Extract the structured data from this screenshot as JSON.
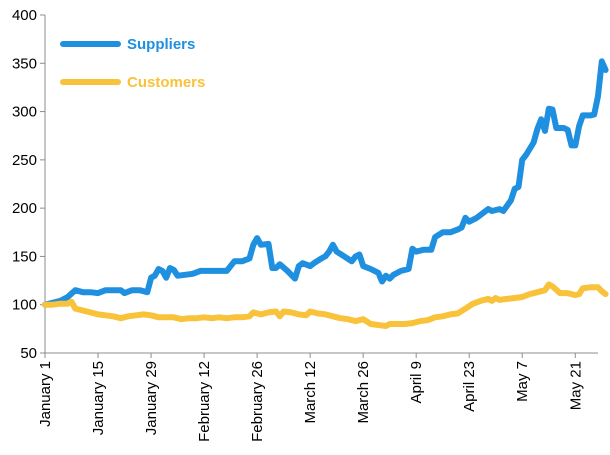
{
  "chart_data": {
    "type": "line",
    "title": "",
    "xlabel": "",
    "ylabel": "",
    "ylim": [
      50,
      400
    ],
    "y_ticks": [
      "50",
      "100",
      "150",
      "200",
      "250",
      "300",
      "350",
      "400"
    ],
    "x_ticks": [
      {
        "label": "January 1",
        "day": 0
      },
      {
        "label": "January 15",
        "day": 14
      },
      {
        "label": "January 29",
        "day": 28
      },
      {
        "label": "February 12",
        "day": 42
      },
      {
        "label": "February 26",
        "day": 56
      },
      {
        "label": "March 12",
        "day": 70
      },
      {
        "label": "March 26",
        "day": 84
      },
      {
        "label": "April 9",
        "day": 98
      },
      {
        "label": "April 23",
        "day": 112
      },
      {
        "label": "May 7",
        "day": 126
      },
      {
        "label": "May 21",
        "day": 140
      }
    ],
    "x_range_days": [
      0,
      146
    ],
    "grid": false,
    "legend_position": "top-left",
    "series": [
      {
        "name": "Suppliers",
        "color": "#1f90e0",
        "points": [
          [
            0,
            100
          ],
          [
            2,
            102
          ],
          [
            4,
            104
          ],
          [
            6,
            108
          ],
          [
            8,
            115
          ],
          [
            10,
            113
          ],
          [
            12,
            113
          ],
          [
            14,
            112
          ],
          [
            16,
            115
          ],
          [
            18,
            115
          ],
          [
            20,
            115
          ],
          [
            21,
            112
          ],
          [
            23,
            115
          ],
          [
            25,
            115
          ],
          [
            27,
            113
          ],
          [
            28,
            128
          ],
          [
            29,
            130
          ],
          [
            30,
            137
          ],
          [
            31,
            135
          ],
          [
            32,
            128
          ],
          [
            33,
            138
          ],
          [
            34,
            136
          ],
          [
            35,
            130
          ],
          [
            37,
            131
          ],
          [
            39,
            132
          ],
          [
            41,
            135
          ],
          [
            43,
            135
          ],
          [
            45,
            135
          ],
          [
            48,
            135
          ],
          [
            50,
            145
          ],
          [
            52,
            145
          ],
          [
            54,
            148
          ],
          [
            55,
            162
          ],
          [
            56,
            169
          ],
          [
            57,
            162
          ],
          [
            59,
            163
          ],
          [
            60,
            138
          ],
          [
            61,
            138
          ],
          [
            62,
            142
          ],
          [
            64,
            135
          ],
          [
            66,
            127
          ],
          [
            67,
            140
          ],
          [
            68,
            143
          ],
          [
            70,
            140
          ],
          [
            71,
            143
          ],
          [
            73,
            148
          ],
          [
            74,
            150
          ],
          [
            75,
            155
          ],
          [
            76,
            162
          ],
          [
            77,
            155
          ],
          [
            79,
            150
          ],
          [
            81,
            145
          ],
          [
            82,
            150
          ],
          [
            83,
            152
          ],
          [
            84,
            140
          ],
          [
            86,
            137
          ],
          [
            88,
            133
          ],
          [
            89,
            124
          ],
          [
            90,
            130
          ],
          [
            91,
            127
          ],
          [
            92,
            131
          ],
          [
            94,
            135
          ],
          [
            96,
            137
          ],
          [
            97,
            158
          ],
          [
            98,
            155
          ],
          [
            100,
            157
          ],
          [
            102,
            157
          ],
          [
            103,
            170
          ],
          [
            105,
            175
          ],
          [
            107,
            175
          ],
          [
            109,
            178
          ],
          [
            110,
            180
          ],
          [
            111,
            190
          ],
          [
            112,
            186
          ],
          [
            114,
            190
          ],
          [
            116,
            196
          ],
          [
            117,
            199
          ],
          [
            118,
            197
          ],
          [
            120,
            199
          ],
          [
            121,
            197
          ],
          [
            123,
            208
          ],
          [
            124,
            220
          ],
          [
            125,
            222
          ],
          [
            126,
            250
          ],
          [
            127,
            255
          ],
          [
            129,
            268
          ],
          [
            130,
            282
          ],
          [
            131,
            292
          ],
          [
            132,
            280
          ],
          [
            133,
            303
          ],
          [
            134,
            302
          ],
          [
            135,
            283
          ],
          [
            137,
            283
          ],
          [
            138,
            281
          ],
          [
            139,
            265
          ],
          [
            140,
            265
          ],
          [
            141,
            285
          ],
          [
            142,
            296
          ],
          [
            144,
            296
          ],
          [
            145,
            297
          ],
          [
            146,
            316
          ],
          [
            147,
            352
          ],
          [
            148,
            343
          ]
        ]
      },
      {
        "name": "Customers",
        "color": "#f8c33a",
        "points": [
          [
            0,
            100
          ],
          [
            2,
            100
          ],
          [
            4,
            101
          ],
          [
            6,
            101
          ],
          [
            7,
            103
          ],
          [
            8,
            96
          ],
          [
            10,
            94
          ],
          [
            12,
            92
          ],
          [
            14,
            90
          ],
          [
            16,
            89
          ],
          [
            18,
            88
          ],
          [
            20,
            86
          ],
          [
            22,
            88
          ],
          [
            24,
            89
          ],
          [
            26,
            90
          ],
          [
            28,
            89
          ],
          [
            30,
            87
          ],
          [
            32,
            87
          ],
          [
            34,
            87
          ],
          [
            36,
            85
          ],
          [
            38,
            86
          ],
          [
            40,
            86
          ],
          [
            42,
            87
          ],
          [
            44,
            86
          ],
          [
            46,
            87
          ],
          [
            48,
            86
          ],
          [
            50,
            87
          ],
          [
            52,
            87
          ],
          [
            54,
            88
          ],
          [
            55,
            92
          ],
          [
            57,
            90
          ],
          [
            59,
            92
          ],
          [
            61,
            93
          ],
          [
            62,
            88
          ],
          [
            63,
            93
          ],
          [
            65,
            92
          ],
          [
            67,
            90
          ],
          [
            69,
            89
          ],
          [
            70,
            93
          ],
          [
            72,
            91
          ],
          [
            74,
            90
          ],
          [
            76,
            88
          ],
          [
            78,
            86
          ],
          [
            80,
            85
          ],
          [
            82,
            83
          ],
          [
            84,
            85
          ],
          [
            86,
            80
          ],
          [
            88,
            79
          ],
          [
            90,
            78
          ],
          [
            91,
            80
          ],
          [
            93,
            80
          ],
          [
            95,
            80
          ],
          [
            97,
            81
          ],
          [
            99,
            83
          ],
          [
            101,
            84
          ],
          [
            103,
            87
          ],
          [
            105,
            88
          ],
          [
            107,
            90
          ],
          [
            109,
            91
          ],
          [
            111,
            96
          ],
          [
            113,
            101
          ],
          [
            115,
            104
          ],
          [
            117,
            106
          ],
          [
            118,
            104
          ],
          [
            119,
            107
          ],
          [
            120,
            105
          ],
          [
            122,
            106
          ],
          [
            124,
            107
          ],
          [
            126,
            108
          ],
          [
            128,
            111
          ],
          [
            130,
            113
          ],
          [
            132,
            115
          ],
          [
            133,
            121
          ],
          [
            134,
            119
          ],
          [
            136,
            112
          ],
          [
            138,
            112
          ],
          [
            140,
            110
          ],
          [
            141,
            111
          ],
          [
            142,
            117
          ],
          [
            144,
            118
          ],
          [
            146,
            118
          ],
          [
            147,
            114
          ],
          [
            148,
            111
          ]
        ]
      }
    ]
  }
}
